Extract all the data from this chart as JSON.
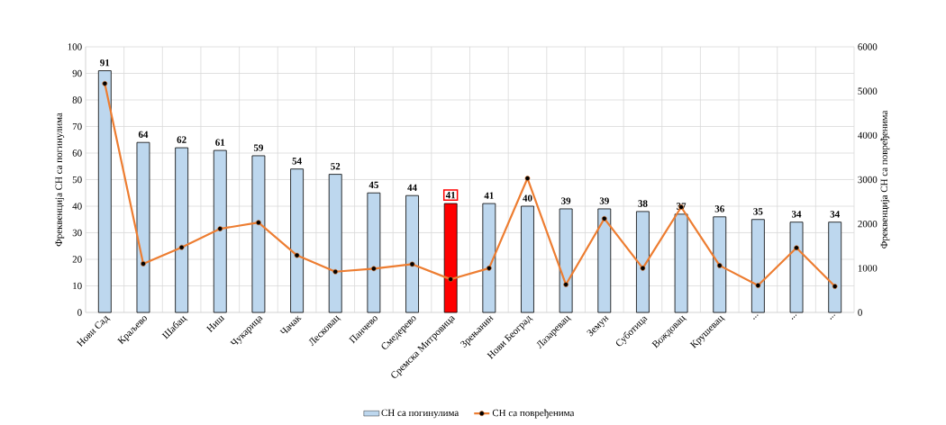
{
  "chart_data": {
    "type": "bar",
    "categories": [
      "Нови Сад",
      "Краљево",
      "Шабац",
      "Ниш",
      "Чукарица",
      "Чачак",
      "Лесковац",
      "Панчево",
      "Смедерево",
      "Сремска Митровица",
      "Зрењанин",
      "Нови Београд",
      "Лазаревац",
      "Земун",
      "Суботица",
      "Вождовац",
      "Крушевац",
      "...",
      "...",
      "..."
    ],
    "series": [
      {
        "name": "СН са погинулима",
        "color": "#bdd7ee",
        "colors": [
          "#bdd7ee",
          "#bdd7ee",
          "#bdd7ee",
          "#bdd7ee",
          "#bdd7ee",
          "#bdd7ee",
          "#bdd7ee",
          "#bdd7ee",
          "#bdd7ee",
          "#ff0000",
          "#bdd7ee",
          "#bdd7ee",
          "#bdd7ee",
          "#bdd7ee",
          "#bdd7ee",
          "#bdd7ee",
          "#bdd7ee",
          "#bdd7ee",
          "#bdd7ee",
          "#bdd7ee"
        ],
        "values": [
          91,
          64,
          62,
          61,
          59,
          54,
          52,
          45,
          44,
          41,
          41,
          40,
          39,
          39,
          38,
          37,
          36,
          35,
          34,
          34
        ],
        "value_labels": [
          "91",
          "64",
          "62",
          "61",
          "59",
          "54",
          "52",
          "45",
          "44",
          "41",
          "41",
          "40",
          "39",
          "39",
          "38",
          "37",
          "36",
          "35",
          "34",
          "34"
        ]
      },
      {
        "name": "СН са повређенима",
        "type": "line",
        "axis": "y2",
        "color": "#ed7d31",
        "values": [
          5170,
          1100,
          1470,
          1890,
          2030,
          1290,
          920,
          990,
          1090,
          750,
          1000,
          3030,
          630,
          2120,
          1000,
          2380,
          1060,
          610,
          1460,
          590
        ]
      }
    ],
    "ylabel": "Фреквенција СН са погинулима",
    "y2label": "Фреквенција СН са повређенима",
    "ylim": [
      0,
      100
    ],
    "yticks": [
      0,
      10,
      20,
      30,
      40,
      50,
      60,
      70,
      80,
      90,
      100
    ],
    "y2lim": [
      0,
      6000
    ],
    "y2ticks": [
      0,
      1000,
      2000,
      3000,
      4000,
      5000,
      6000
    ],
    "grid": true,
    "legend": "bottom",
    "marker": "circle",
    "line_style": "solid"
  }
}
